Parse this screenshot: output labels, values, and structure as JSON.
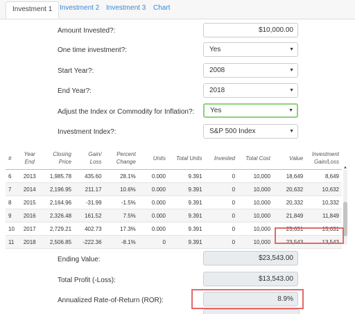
{
  "tabs": [
    "Investment 1",
    "Investment 2",
    "Investment 3",
    "Chart"
  ],
  "form": {
    "amount_label": "Amount Invested?:",
    "amount_value": "$10,000.00",
    "onetime_label": "One time investment?:",
    "onetime_value": "Yes",
    "start_label": "Start Year?:",
    "start_value": "2008",
    "end_label": "End Year?:",
    "end_value": "2018",
    "inflation_label": "Adjust the Index or Commodity for Inflation?:",
    "inflation_value": "Yes",
    "index_label": "Investment Index?:",
    "index_value": "S&P 500 Index"
  },
  "table": {
    "headers": [
      "#",
      "Year End",
      "Closing Price",
      "Gain/ Loss",
      "Percent Change",
      "Units",
      "Total Units",
      "Invested",
      "Total Cost",
      "Value",
      "Investment Gain/Loss"
    ],
    "rows": [
      [
        "6",
        "2013",
        "1,985.78",
        "435.60",
        "28.1%",
        "0.000",
        "9.391",
        "0",
        "10,000",
        "18,649",
        "8,649"
      ],
      [
        "7",
        "2014",
        "2,196.95",
        "211.17",
        "10.6%",
        "0.000",
        "9.391",
        "0",
        "10,000",
        "20,632",
        "10,632"
      ],
      [
        "8",
        "2015",
        "2,164.96",
        "-31.99",
        "-1.5%",
        "0.000",
        "9.391",
        "0",
        "10,000",
        "20,332",
        "10,332"
      ],
      [
        "9",
        "2016",
        "2,326.48",
        "161.52",
        "7.5%",
        "0.000",
        "9.391",
        "0",
        "10,000",
        "21,849",
        "11,849"
      ],
      [
        "10",
        "2017",
        "2,729.21",
        "402.73",
        "17.3%",
        "0.000",
        "9.391",
        "0",
        "10,000",
        "25,631",
        "15,631"
      ],
      [
        "11",
        "2018",
        "2,506.85",
        "-222.36",
        "-8.1%",
        "0",
        "9.391",
        "0",
        "10,000",
        "23,543",
        "13,543"
      ]
    ]
  },
  "results": {
    "ending_label": "Ending Value:",
    "ending_value": "$23,543.00",
    "profit_label": "Total Profit (-Loss):",
    "profit_value": "$13,543.00",
    "ror_label": "Annualized Rate-of-Return (ROR):",
    "ror_value": "8.9%"
  },
  "icons": {
    "caret": "caret-down-icon",
    "scroll_up": "scroll-up-arrow-icon"
  },
  "colors": {
    "link": "#3a87d6",
    "highlight_border": "#8cd17a",
    "annotation_red": "#e36868",
    "readonly_bg": "#e9ecef"
  }
}
